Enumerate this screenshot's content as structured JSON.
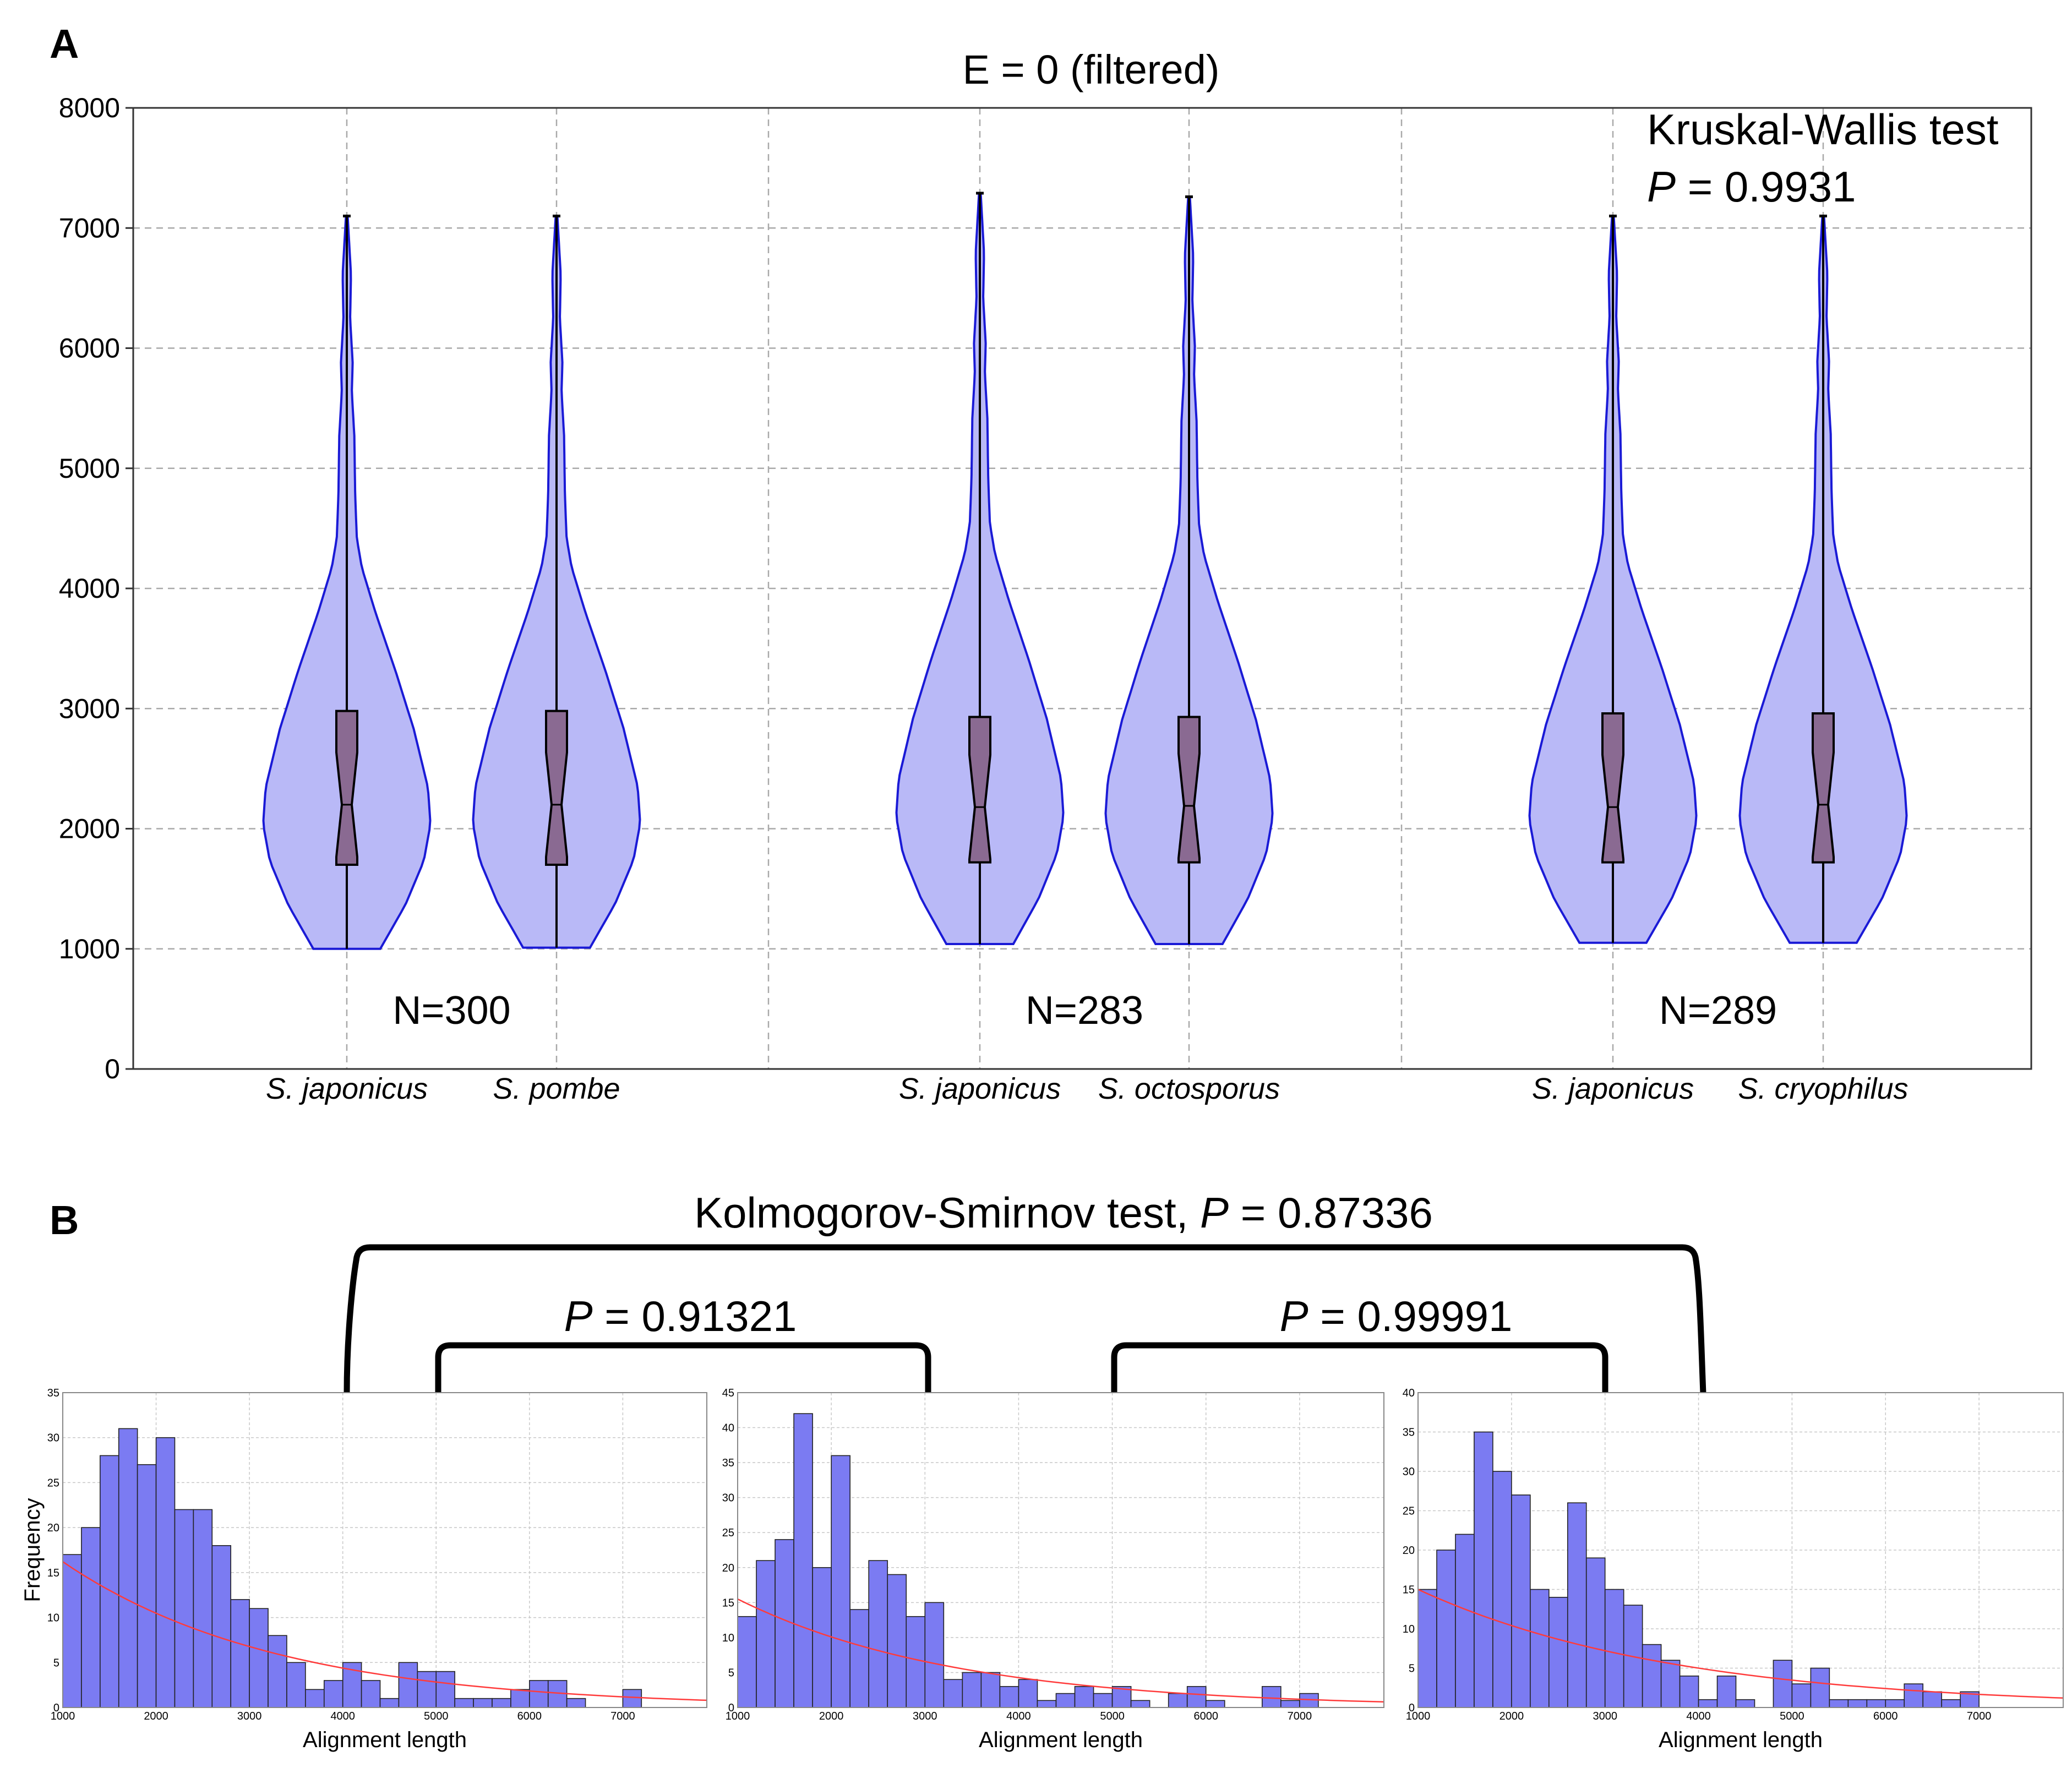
{
  "panel_labels": {
    "a": "A",
    "b": "B"
  },
  "panel_a": {
    "title": "E = 0 (filtered)",
    "test_name": "Kruskal-Wallis test",
    "test_p_letter": "P",
    "test_p_value": " = 0.9931"
  },
  "panel_b": {
    "ks_title_prefix": "Kolmogorov-Smirnov test, ",
    "ks_p_letter": "P",
    "ks_p_value": " = 0.87336",
    "left_p_letter": "P",
    "left_p_value": " = 0.91321",
    "right_p_letter": "P",
    "right_p_value": " = 0.99991"
  },
  "colors": {
    "violin_fill": "#b9b9f7",
    "violin_edge": "#1a1ad6",
    "box_fill": "#8a6a92",
    "hist_bar": "#7b7bf2",
    "fit_line": "#ff3b3b",
    "grid": "#a9a9a9"
  },
  "chart_data": [
    {
      "type": "violin",
      "title": "E = 0 (filtered)",
      "ylim": [
        0,
        8000
      ],
      "yticks": [
        0,
        1000,
        2000,
        3000,
        4000,
        5000,
        6000,
        7000,
        8000
      ],
      "grid": true,
      "annotation": "Kruskal-Wallis test P = 0.9931",
      "groups": [
        {
          "n_label": "N=300",
          "violins": [
            {
              "label": "S. japonicus",
              "min": 1000,
              "q1": 1700,
              "median": 2200,
              "q3": 2980,
              "max": 7100
            },
            {
              "label": "S. pombe",
              "min": 1010,
              "q1": 1700,
              "median": 2200,
              "q3": 2980,
              "max": 7100
            }
          ]
        },
        {
          "n_label": "N=283",
          "violins": [
            {
              "label": "S. japonicus",
              "min": 1040,
              "q1": 1720,
              "median": 2180,
              "q3": 2930,
              "max": 7290
            },
            {
              "label": "S. octosporus",
              "min": 1040,
              "q1": 1720,
              "median": 2190,
              "q3": 2930,
              "max": 7260
            }
          ]
        },
        {
          "n_label": "N=289",
          "violins": [
            {
              "label": "S. japonicus",
              "min": 1050,
              "q1": 1720,
              "median": 2180,
              "q3": 2960,
              "max": 7100
            },
            {
              "label": "S. cryophilus",
              "min": 1050,
              "q1": 1720,
              "median": 2200,
              "q3": 2960,
              "max": 7100
            }
          ]
        }
      ]
    },
    {
      "type": "bar",
      "subtype": "histogram",
      "xlabel": "Alignment length",
      "ylabel": "Frequency",
      "xlim": [
        1000,
        7900
      ],
      "ylim": [
        0,
        35
      ],
      "xticks": [
        1000,
        2000,
        3000,
        4000,
        5000,
        6000,
        7000
      ],
      "yticks": [
        0,
        5,
        10,
        15,
        20,
        25,
        30,
        35
      ],
      "bin_start": 1000,
      "bin_width": 200,
      "values": [
        17,
        20,
        28,
        31,
        27,
        30,
        22,
        22,
        18,
        12,
        11,
        8,
        5,
        2,
        3,
        5,
        3,
        1,
        5,
        4,
        4,
        1,
        1,
        1,
        2,
        3,
        3,
        1,
        0,
        0,
        2
      ],
      "fit": {
        "start": 16.2,
        "end": 0.8
      }
    },
    {
      "type": "bar",
      "subtype": "histogram",
      "xlabel": "Alignment length",
      "ylabel": "",
      "xlim": [
        1000,
        7900
      ],
      "ylim": [
        0,
        45
      ],
      "xticks": [
        1000,
        2000,
        3000,
        4000,
        5000,
        6000,
        7000
      ],
      "yticks": [
        0,
        5,
        10,
        15,
        20,
        25,
        30,
        35,
        40,
        45
      ],
      "bin_start": 1000,
      "bin_width": 200,
      "values": [
        13,
        21,
        24,
        42,
        20,
        36,
        14,
        21,
        19,
        13,
        15,
        4,
        5,
        5,
        3,
        4,
        1,
        2,
        3,
        2,
        3,
        1,
        0,
        2,
        3,
        1,
        0,
        0,
        3,
        1,
        2
      ],
      "fit": {
        "start": 15.5,
        "end": 0.8
      }
    },
    {
      "type": "bar",
      "subtype": "histogram",
      "xlabel": "Alignment length",
      "ylabel": "",
      "xlim": [
        1000,
        7900
      ],
      "ylim": [
        0,
        40
      ],
      "xticks": [
        1000,
        2000,
        3000,
        4000,
        5000,
        6000,
        7000
      ],
      "yticks": [
        0,
        5,
        10,
        15,
        20,
        25,
        30,
        35,
        40
      ],
      "bin_start": 1000,
      "bin_width": 200,
      "values": [
        15,
        20,
        22,
        35,
        30,
        27,
        15,
        14,
        26,
        19,
        15,
        13,
        8,
        6,
        4,
        1,
        4,
        1,
        0,
        6,
        3,
        5,
        1,
        1,
        1,
        1,
        3,
        2,
        1,
        2
      ],
      "fit": {
        "start": 15.0,
        "end": 1.2
      }
    }
  ]
}
